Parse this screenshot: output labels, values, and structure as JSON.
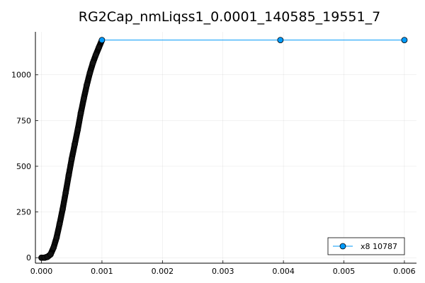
{
  "chart_data": {
    "type": "line",
    "title": "RG2Cap_nmLiqss1_0.0001_140585_19551_7",
    "xlabel": "",
    "ylabel": "",
    "xlim": [
      -0.0001,
      0.0062
    ],
    "ylim": [
      -30,
      1235
    ],
    "x_ticks": [
      0.0,
      0.001,
      0.002,
      0.003,
      0.004,
      0.005,
      0.006
    ],
    "x_tick_labels": [
      "0.000",
      "0.001",
      "0.002",
      "0.003",
      "0.004",
      "0.005",
      "0.006"
    ],
    "y_ticks": [
      0,
      250,
      500,
      750,
      1000
    ],
    "y_tick_labels": [
      "0",
      "250",
      "500",
      "750",
      "1000"
    ],
    "grid": true,
    "legend_position": "bottom-right",
    "series": [
      {
        "name": "x8 10787",
        "color": "#009AFA",
        "marker": "circle",
        "marker_color": "#009AFA",
        "x": [
          0.0,
          5e-05,
          0.0001,
          0.00015,
          0.0002,
          0.00025,
          0.0003,
          0.00035,
          0.0004,
          0.00045,
          0.0005,
          0.00055,
          0.0006,
          0.00065,
          0.0007,
          0.00075,
          0.0008,
          0.00085,
          0.0009,
          0.00095,
          0.001,
          0.00395,
          0.006
        ],
        "y": [
          0,
          0,
          5,
          18,
          55,
          110,
          185,
          265,
          355,
          450,
          540,
          620,
          700,
          790,
          870,
          945,
          1010,
          1065,
          1110,
          1150,
          1190,
          1190,
          1190
        ]
      }
    ]
  }
}
